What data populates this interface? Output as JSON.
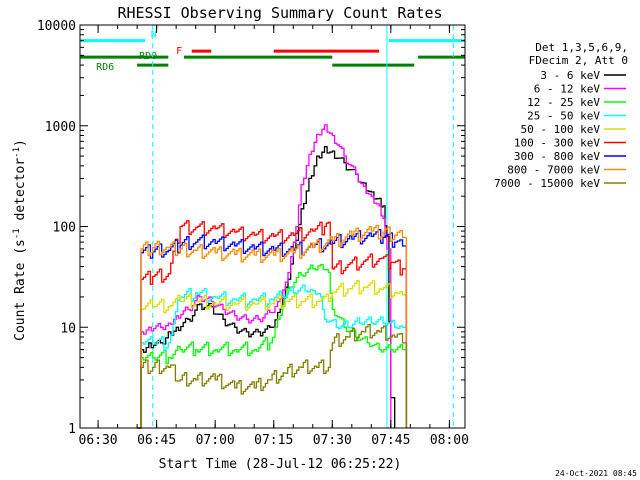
{
  "chart_data": {
    "type": "line",
    "title": "RHESSI Observing Summary Count Rates",
    "xlabel": "Start Time (28-Jul-12 06:25:22)",
    "ylabel": "Count Rate (s",
    "ylabel_sup": "-1",
    "ylabel_rest": " detector",
    "ylabel_sup2": "-1",
    "ylabel_end": ")",
    "y_scale": "log",
    "ylim": [
      1,
      10000
    ],
    "xlim": [
      "06:25:22",
      "08:04:00"
    ],
    "x_ticks": [
      "06:30",
      "06:45",
      "07:00",
      "07:15",
      "07:30",
      "07:45",
      "08:00"
    ],
    "y_ticks": [
      "1",
      "10",
      "100",
      "1000",
      "10000"
    ],
    "timestamp": "24-Oct-2021 08:45",
    "legend": {
      "position": "right",
      "header": [
        "Det 1,3,5,6,9,",
        "FDecim 2, Att 0"
      ],
      "entries": [
        {
          "label": "3 - 6 keV",
          "color": "#000000"
        },
        {
          "label": "6 - 12 keV",
          "color": "#ff00ff"
        },
        {
          "label": "12 - 25 keV",
          "color": "#00ff00"
        },
        {
          "label": "25 - 50 keV",
          "color": "#00ffff"
        },
        {
          "label": "50 - 100 keV",
          "color": "#dddd00"
        },
        {
          "label": "100 - 300 keV",
          "color": "#ff0000"
        },
        {
          "label": "300 - 800 keV",
          "color": "#0000ff"
        },
        {
          "label": "800 - 7000 keV",
          "color": "#ff8c00"
        },
        {
          "label": "7000 - 15000 keV",
          "color": "#808000"
        }
      ]
    },
    "flags": {
      "labels": {
        "N": "N",
        "F": "F",
        "RD0": "RD0",
        "RD6": "RD6"
      },
      "N": {
        "color": "#00ffff",
        "level": 7000,
        "intervals": [
          [
            "06:25:22",
            "06:42:00"
          ],
          [
            "07:44:30",
            "08:04:00"
          ]
        ]
      },
      "F": {
        "color": "#ff0000",
        "level": 5500,
        "intervals": [
          [
            "06:54:00",
            "06:59:00"
          ],
          [
            "07:15:00",
            "07:42:00"
          ]
        ]
      },
      "RD0": {
        "color": "#008000",
        "level": 4800,
        "intervals": [
          [
            "06:25:22",
            "06:48:00"
          ],
          [
            "06:52:00",
            "07:30:00"
          ],
          [
            "07:52:00",
            "08:04:00"
          ]
        ]
      },
      "RD6": {
        "color": "#008000",
        "level": 4000,
        "intervals": [
          [
            "06:40:00",
            "06:48:00"
          ],
          [
            "07:30:00",
            "07:51:00"
          ]
        ]
      }
    },
    "vlines": {
      "solid": {
        "color": "#00ffff",
        "times": [
          "06:25:22",
          "07:44:00"
        ]
      },
      "dashed": {
        "color": "#00ffff",
        "times": [
          "06:44:00",
          "08:01:00"
        ]
      }
    },
    "series": [
      {
        "name": "3 - 6 keV",
        "color": "#000000",
        "points": [
          [
            "06:40",
            0
          ],
          [
            "06:41",
            6
          ],
          [
            "06:43",
            7
          ],
          [
            "06:46",
            7
          ],
          [
            "06:48",
            9
          ],
          [
            "06:50",
            10
          ],
          [
            "06:53",
            12
          ],
          [
            "06:56",
            17
          ],
          [
            "06:59",
            16
          ],
          [
            "07:02",
            12
          ],
          [
            "07:05",
            10
          ],
          [
            "07:08",
            9
          ],
          [
            "07:11",
            9
          ],
          [
            "07:14",
            10
          ],
          [
            "07:16",
            14
          ],
          [
            "07:18",
            25
          ],
          [
            "07:20",
            60
          ],
          [
            "07:22",
            150
          ],
          [
            "07:24",
            300
          ],
          [
            "07:26",
            500
          ],
          [
            "07:28",
            620
          ],
          [
            "07:30",
            560
          ],
          [
            "07:33",
            430
          ],
          [
            "07:36",
            330
          ],
          [
            "07:38",
            270
          ],
          [
            "07:40",
            220
          ],
          [
            "07:42",
            190
          ],
          [
            "07:43",
            160
          ],
          [
            "07:44",
            80
          ],
          [
            "07:45",
            2
          ],
          [
            "07:46",
            0
          ]
        ]
      },
      {
        "name": "6 - 12 keV",
        "color": "#ff00ff",
        "points": [
          [
            "06:40",
            0
          ],
          [
            "06:41",
            9
          ],
          [
            "06:43",
            10
          ],
          [
            "06:46",
            10
          ],
          [
            "06:48",
            11
          ],
          [
            "06:50",
            13
          ],
          [
            "06:53",
            15
          ],
          [
            "06:56",
            20
          ],
          [
            "06:59",
            18
          ],
          [
            "07:02",
            15
          ],
          [
            "07:05",
            13
          ],
          [
            "07:08",
            12
          ],
          [
            "07:11",
            12
          ],
          [
            "07:14",
            14
          ],
          [
            "07:16",
            18
          ],
          [
            "07:18",
            28
          ],
          [
            "07:20",
            70
          ],
          [
            "07:22",
            260
          ],
          [
            "07:24",
            520
          ],
          [
            "07:26",
            820
          ],
          [
            "07:28",
            1020
          ],
          [
            "07:30",
            800
          ],
          [
            "07:33",
            500
          ],
          [
            "07:36",
            330
          ],
          [
            "07:38",
            250
          ],
          [
            "07:40",
            200
          ],
          [
            "07:42",
            160
          ],
          [
            "07:43",
            120
          ],
          [
            "07:44",
            60
          ],
          [
            "07:45",
            0
          ]
        ]
      },
      {
        "name": "12 - 25 keV",
        "color": "#00ff00",
        "points": [
          [
            "06:40",
            0
          ],
          [
            "06:41",
            5
          ],
          [
            "06:44",
            5
          ],
          [
            "06:48",
            5
          ],
          [
            "06:51",
            6
          ],
          [
            "06:55",
            6
          ],
          [
            "07:00",
            6
          ],
          [
            "07:05",
            6
          ],
          [
            "07:10",
            6
          ],
          [
            "07:14",
            7
          ],
          [
            "07:16",
            12
          ],
          [
            "07:19",
            25
          ],
          [
            "07:22",
            33
          ],
          [
            "07:25",
            38
          ],
          [
            "07:27",
            42
          ],
          [
            "07:29",
            35
          ],
          [
            "07:30",
            15
          ],
          [
            "07:33",
            10
          ],
          [
            "07:36",
            8
          ],
          [
            "07:39",
            7
          ],
          [
            "07:42",
            6
          ],
          [
            "07:45",
            6
          ],
          [
            "07:48",
            6
          ],
          [
            "07:49",
            0
          ]
        ]
      },
      {
        "name": "25 - 50 keV",
        "color": "#00ffff",
        "points": [
          [
            "06:40",
            0
          ],
          [
            "06:41",
            7
          ],
          [
            "06:44",
            7
          ],
          [
            "06:48",
            7
          ],
          [
            "06:51",
            20
          ],
          [
            "06:55",
            22
          ],
          [
            "07:00",
            20
          ],
          [
            "07:05",
            19
          ],
          [
            "07:10",
            19
          ],
          [
            "07:14",
            19
          ],
          [
            "07:17",
            20
          ],
          [
            "07:20",
            22
          ],
          [
            "07:23",
            23
          ],
          [
            "07:25",
            23
          ],
          [
            "07:27",
            20
          ],
          [
            "07:28",
            12
          ],
          [
            "07:31",
            10
          ],
          [
            "07:34",
            10
          ],
          [
            "07:37",
            11
          ],
          [
            "07:40",
            11
          ],
          [
            "07:43",
            11
          ],
          [
            "07:46",
            10
          ],
          [
            "07:48",
            10
          ],
          [
            "07:49",
            0
          ]
        ]
      },
      {
        "name": "50 - 100 keV",
        "color": "#dddd00",
        "points": [
          [
            "06:40",
            0
          ],
          [
            "06:41",
            15
          ],
          [
            "06:44",
            16
          ],
          [
            "06:48",
            16
          ],
          [
            "06:51",
            18
          ],
          [
            "06:55",
            18
          ],
          [
            "07:00",
            17
          ],
          [
            "07:05",
            17
          ],
          [
            "07:10",
            17
          ],
          [
            "07:14",
            17
          ],
          [
            "07:18",
            18
          ],
          [
            "07:22",
            18
          ],
          [
            "07:26",
            18
          ],
          [
            "07:29",
            18
          ],
          [
            "07:30",
            22
          ],
          [
            "07:34",
            24
          ],
          [
            "07:38",
            25
          ],
          [
            "07:42",
            24
          ],
          [
            "07:46",
            22
          ],
          [
            "07:48",
            21
          ],
          [
            "07:49",
            0
          ]
        ]
      },
      {
        "name": "100 - 300 keV",
        "color": "#ff0000",
        "points": [
          [
            "06:40",
            0
          ],
          [
            "06:41",
            30
          ],
          [
            "06:44",
            32
          ],
          [
            "06:48",
            34
          ],
          [
            "06:51",
            100
          ],
          [
            "06:55",
            98
          ],
          [
            "07:00",
            95
          ],
          [
            "07:05",
            88
          ],
          [
            "07:10",
            82
          ],
          [
            "07:15",
            80
          ],
          [
            "07:20",
            82
          ],
          [
            "07:25",
            90
          ],
          [
            "07:28",
            100
          ],
          [
            "07:29",
            110
          ],
          [
            "07:30",
            38
          ],
          [
            "07:34",
            42
          ],
          [
            "07:38",
            45
          ],
          [
            "07:42",
            48
          ],
          [
            "07:45",
            44
          ],
          [
            "07:48",
            38
          ],
          [
            "07:49",
            0
          ]
        ]
      },
      {
        "name": "300 - 800 keV",
        "color": "#0000ff",
        "points": [
          [
            "06:40",
            0
          ],
          [
            "06:41",
            55
          ],
          [
            "06:44",
            56
          ],
          [
            "06:48",
            58
          ],
          [
            "06:51",
            65
          ],
          [
            "06:55",
            70
          ],
          [
            "07:00",
            68
          ],
          [
            "07:05",
            64
          ],
          [
            "07:10",
            60
          ],
          [
            "07:15",
            58
          ],
          [
            "07:20",
            58
          ],
          [
            "07:25",
            62
          ],
          [
            "07:30",
            68
          ],
          [
            "07:35",
            75
          ],
          [
            "07:40",
            80
          ],
          [
            "07:43",
            78
          ],
          [
            "07:46",
            70
          ],
          [
            "07:48",
            64
          ],
          [
            "07:49",
            0
          ]
        ]
      },
      {
        "name": "800 - 7000 keV",
        "color": "#ff8c00",
        "points": [
          [
            "06:40",
            0
          ],
          [
            "06:41",
            60
          ],
          [
            "06:44",
            62
          ],
          [
            "06:48",
            62
          ],
          [
            "06:51",
            60
          ],
          [
            "06:55",
            58
          ],
          [
            "07:00",
            55
          ],
          [
            "07:05",
            53
          ],
          [
            "07:10",
            52
          ],
          [
            "07:15",
            52
          ],
          [
            "07:20",
            55
          ],
          [
            "07:25",
            62
          ],
          [
            "07:30",
            72
          ],
          [
            "07:35",
            82
          ],
          [
            "07:40",
            90
          ],
          [
            "07:43",
            88
          ],
          [
            "07:46",
            82
          ],
          [
            "07:48",
            78
          ],
          [
            "07:49",
            0
          ]
        ]
      },
      {
        "name": "7000 - 15000 keV",
        "color": "#808000",
        "points": [
          [
            "06:40",
            0
          ],
          [
            "06:41",
            4
          ],
          [
            "06:44",
            4
          ],
          [
            "06:48",
            4
          ],
          [
            "06:51",
            3
          ],
          [
            "06:55",
            3
          ],
          [
            "07:00",
            3
          ],
          [
            "07:05",
            2.5
          ],
          [
            "07:10",
            2.5
          ],
          [
            "07:14",
            3
          ],
          [
            "07:18",
            3.5
          ],
          [
            "07:22",
            4
          ],
          [
            "07:26",
            4
          ],
          [
            "07:29",
            4
          ],
          [
            "07:30",
            7
          ],
          [
            "07:34",
            8
          ],
          [
            "07:38",
            9
          ],
          [
            "07:42",
            9
          ],
          [
            "07:46",
            8
          ],
          [
            "07:48",
            7
          ],
          [
            "07:49",
            0
          ]
        ]
      }
    ]
  }
}
